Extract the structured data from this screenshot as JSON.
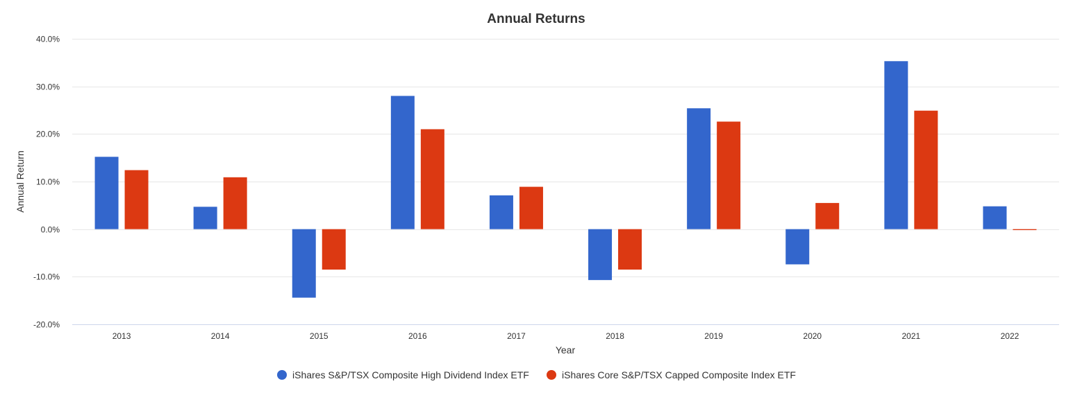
{
  "chart_data": {
    "type": "bar",
    "title": "Annual Returns",
    "xlabel": "Year",
    "ylabel": "Annual Return",
    "ylim": [
      -20,
      40
    ],
    "yticks": [
      -20,
      -10,
      0,
      10,
      20,
      30,
      40
    ],
    "ytick_labels": [
      "-20.0%",
      "-10.0%",
      "0.0%",
      "10.0%",
      "20.0%",
      "30.0%",
      "40.0%"
    ],
    "categories": [
      "2013",
      "2014",
      "2015",
      "2016",
      "2017",
      "2018",
      "2019",
      "2020",
      "2021",
      "2022"
    ],
    "series": [
      {
        "name": "iShares S&P/TSX Composite High Dividend Index ETF",
        "color": "#3366cc",
        "values": [
          15.2,
          4.7,
          -14.4,
          28.0,
          7.1,
          -10.7,
          25.4,
          -7.4,
          35.3,
          4.8
        ]
      },
      {
        "name": "iShares Core S&P/TSX Capped Composite Index ETF",
        "color": "#dc3912",
        "values": [
          12.4,
          10.9,
          -8.5,
          21.0,
          8.9,
          -8.5,
          22.6,
          5.5,
          24.9,
          -0.2
        ]
      }
    ],
    "grid": true,
    "legend_position": "bottom-center"
  }
}
